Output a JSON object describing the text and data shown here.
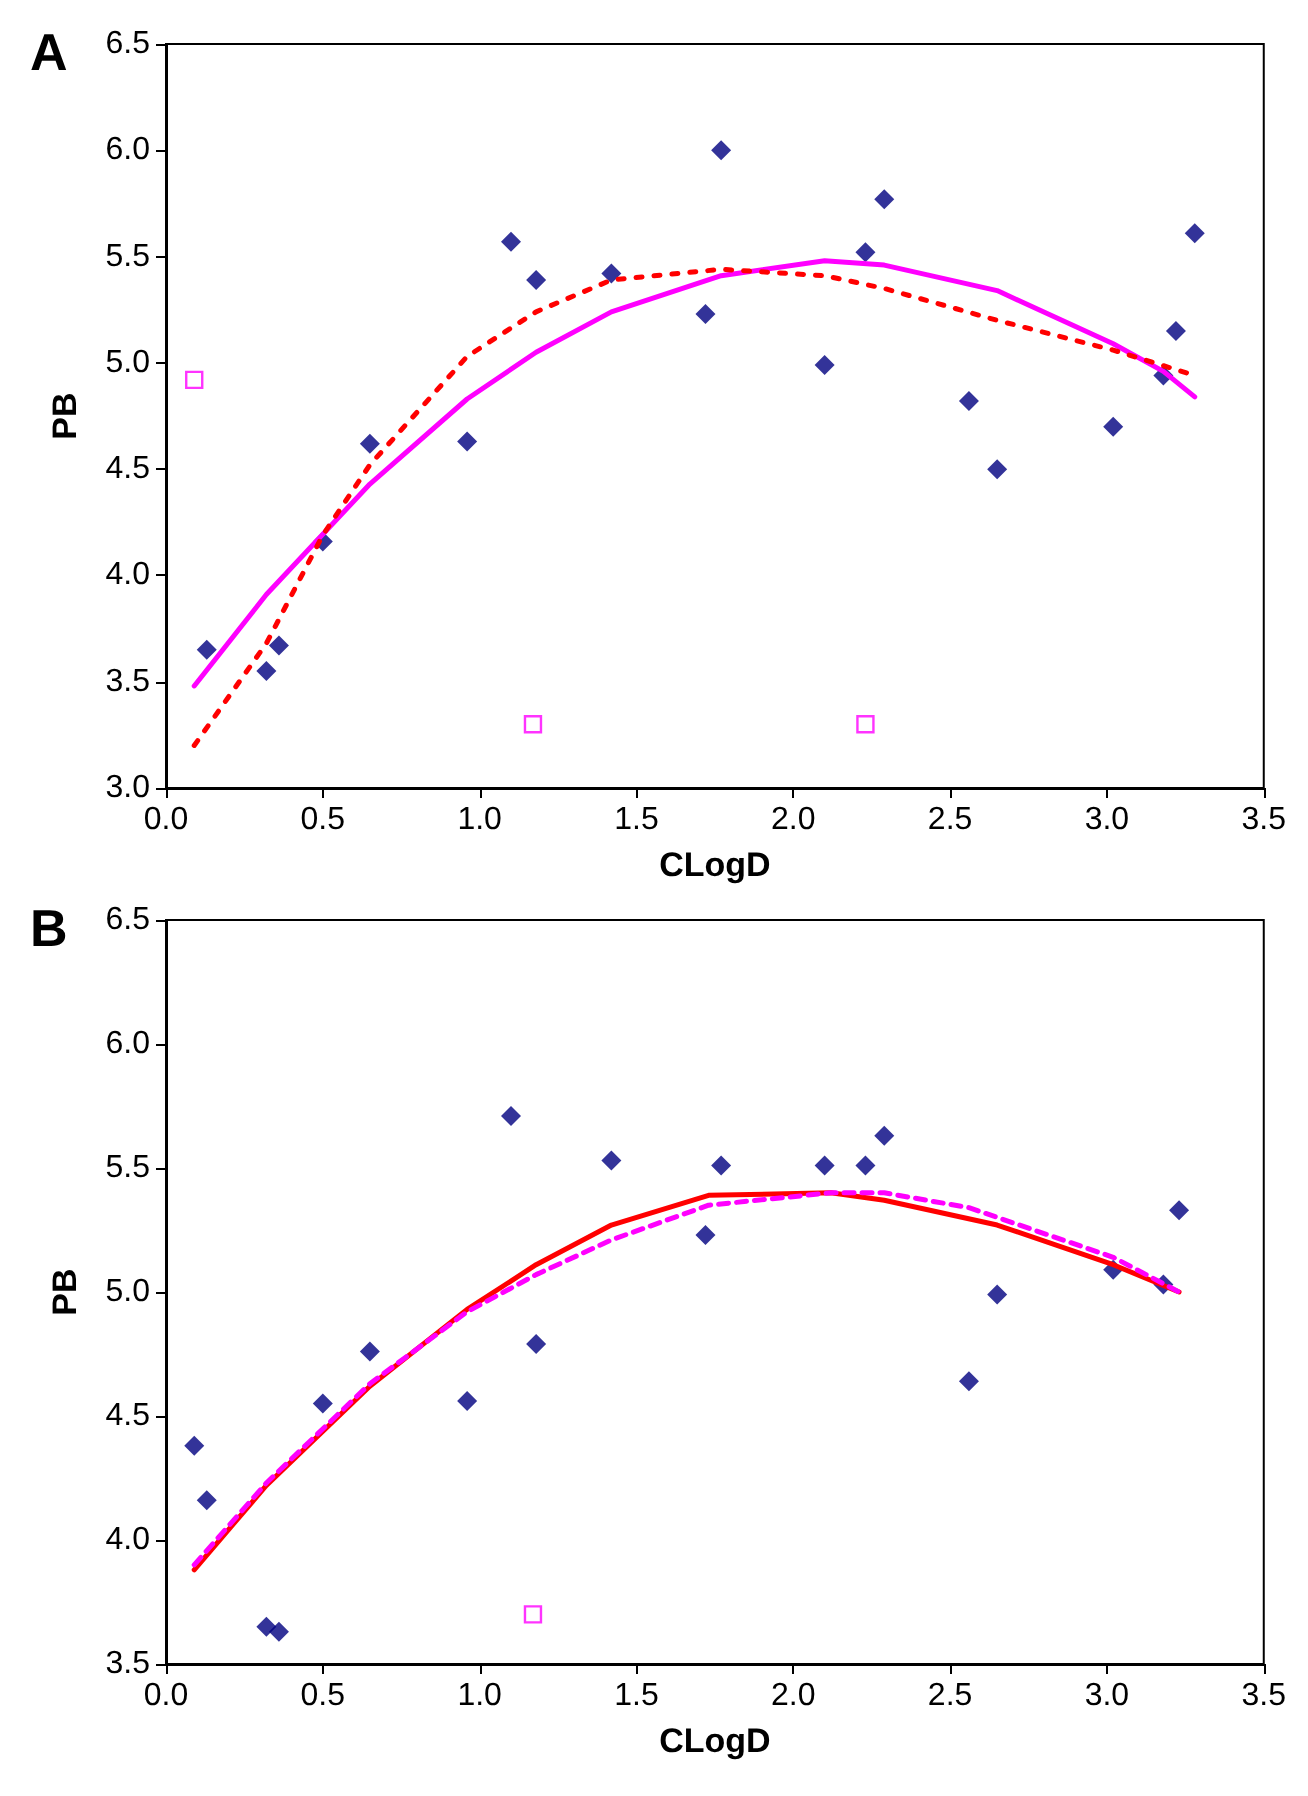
{
  "chart_data": [
    {
      "type": "scatter",
      "title": "A",
      "xlabel": "CLogD",
      "ylabel": "PB",
      "xlim": [
        0,
        3.5
      ],
      "xticks": [
        {
          "value": 0,
          "label": "0.0"
        },
        {
          "value": 0.5,
          "label": "0.5"
        },
        {
          "value": 1,
          "label": "1.0"
        },
        {
          "value": 1.5,
          "label": "1.5"
        },
        {
          "value": 2,
          "label": "2.0"
        },
        {
          "value": 2.5,
          "label": "2.5"
        },
        {
          "value": 3,
          "label": "3.0"
        },
        {
          "value": 3.5,
          "label": "3.5"
        }
      ],
      "ylim": [
        3,
        6.5
      ],
      "yticks": [
        {
          "value": 3,
          "label": "3.0"
        },
        {
          "value": 3.5,
          "label": "3.5"
        },
        {
          "value": 4,
          "label": "4.0"
        },
        {
          "value": 4.5,
          "label": "4.5"
        },
        {
          "value": 5,
          "label": "5.0"
        },
        {
          "value": 5.5,
          "label": "5.5"
        },
        {
          "value": 6,
          "label": "6.0"
        },
        {
          "value": 6.5,
          "label": "6.5"
        }
      ],
      "grid": false,
      "series": [
        {
          "marker": "diamond",
          "color": "#000080",
          "x": [
            0.13,
            0.32,
            0.36,
            0.5,
            0.65,
            0.96,
            1.1,
            1.18,
            1.42,
            1.72,
            1.77,
            2.1,
            2.23,
            2.29,
            2.56,
            2.65,
            3.02,
            3.18,
            3.22,
            3.28
          ],
          "values": [
            3.65,
            3.55,
            3.67,
            4.16,
            4.62,
            4.63,
            5.57,
            5.39,
            5.42,
            5.23,
            6.0,
            4.99,
            5.52,
            5.77,
            4.82,
            4.5,
            4.7,
            4.94,
            5.15,
            5.61
          ]
        },
        {
          "marker": "square",
          "color": "#ff00ff",
          "x": [
            0.09,
            1.17,
            2.23
          ],
          "values": [
            4.92,
            3.3,
            3.3
          ]
        },
        {
          "type": "line",
          "marker": "none",
          "line_style": "solid",
          "color": "#ff00ff",
          "x": [
            0.09,
            0.32,
            0.65,
            0.96,
            1.18,
            1.42,
            1.77,
            2.1,
            2.29,
            2.65,
            3.02,
            3.18,
            3.28
          ],
          "values": [
            3.48,
            3.91,
            4.43,
            4.83,
            5.05,
            5.24,
            5.41,
            5.48,
            5.46,
            5.34,
            5.09,
            4.96,
            4.84
          ]
        },
        {
          "type": "line",
          "marker": "none",
          "line_style": "dotted",
          "color": "#ff0000",
          "x": [
            0.09,
            0.32,
            0.5,
            0.65,
            0.96,
            1.18,
            1.42,
            1.77,
            2.1,
            2.29,
            2.65,
            3.02,
            3.26
          ],
          "values": [
            3.2,
            3.68,
            4.19,
            4.52,
            5.03,
            5.24,
            5.39,
            5.44,
            5.41,
            5.35,
            5.2,
            5.06,
            4.95
          ]
        }
      ]
    },
    {
      "type": "scatter",
      "title": "B",
      "xlabel": "CLogD",
      "ylabel": "PB",
      "xlim": [
        0,
        3.5
      ],
      "xticks": [
        {
          "value": 0,
          "label": "0.0"
        },
        {
          "value": 0.5,
          "label": "0.5"
        },
        {
          "value": 1,
          "label": "1.0"
        },
        {
          "value": 1.5,
          "label": "1.5"
        },
        {
          "value": 2,
          "label": "2.0"
        },
        {
          "value": 2.5,
          "label": "2.5"
        },
        {
          "value": 3,
          "label": "3.0"
        },
        {
          "value": 3.5,
          "label": "3.5"
        }
      ],
      "ylim": [
        3.5,
        6.5
      ],
      "yticks": [
        {
          "value": 3.5,
          "label": "3.5"
        },
        {
          "value": 4,
          "label": "4.0"
        },
        {
          "value": 4.5,
          "label": "4.5"
        },
        {
          "value": 5,
          "label": "5.0"
        },
        {
          "value": 5.5,
          "label": "5.5"
        },
        {
          "value": 6,
          "label": "6.0"
        },
        {
          "value": 6.5,
          "label": "6.5"
        }
      ],
      "grid": false,
      "series": [
        {
          "marker": "diamond",
          "color": "#000080",
          "x": [
            0.09,
            0.13,
            0.32,
            0.36,
            0.5,
            0.65,
            0.96,
            1.1,
            1.18,
            1.42,
            1.72,
            1.77,
            2.1,
            2.23,
            2.29,
            2.56,
            2.65,
            3.02,
            3.18,
            3.23
          ],
          "values": [
            4.38,
            4.16,
            3.65,
            3.63,
            4.55,
            4.76,
            4.56,
            5.71,
            4.79,
            5.53,
            5.23,
            5.51,
            5.51,
            5.51,
            5.63,
            4.64,
            4.99,
            5.09,
            5.03,
            5.33
          ]
        },
        {
          "marker": "square",
          "color": "#ff00ff",
          "x": [
            1.17
          ],
          "values": [
            3.7
          ]
        },
        {
          "type": "line",
          "marker": "none",
          "line_style": "solid",
          "color": "#ff0000",
          "x": [
            0.09,
            0.32,
            0.65,
            0.96,
            1.18,
            1.42,
            1.73,
            2.12,
            2.29,
            2.65,
            3.02,
            3.23
          ],
          "values": [
            3.88,
            4.22,
            4.62,
            4.93,
            5.11,
            5.27,
            5.39,
            5.4,
            5.37,
            5.27,
            5.11,
            5.0
          ]
        },
        {
          "type": "line",
          "marker": "none",
          "line_style": "dashed",
          "color": "#ff00ff",
          "x": [
            0.09,
            0.32,
            0.65,
            0.96,
            1.18,
            1.42,
            1.73,
            2.12,
            2.29,
            2.56,
            3.02,
            3.23
          ],
          "values": [
            3.9,
            4.23,
            4.63,
            4.92,
            5.07,
            5.21,
            5.35,
            5.4,
            5.4,
            5.34,
            5.14,
            5.0
          ]
        }
      ]
    }
  ]
}
